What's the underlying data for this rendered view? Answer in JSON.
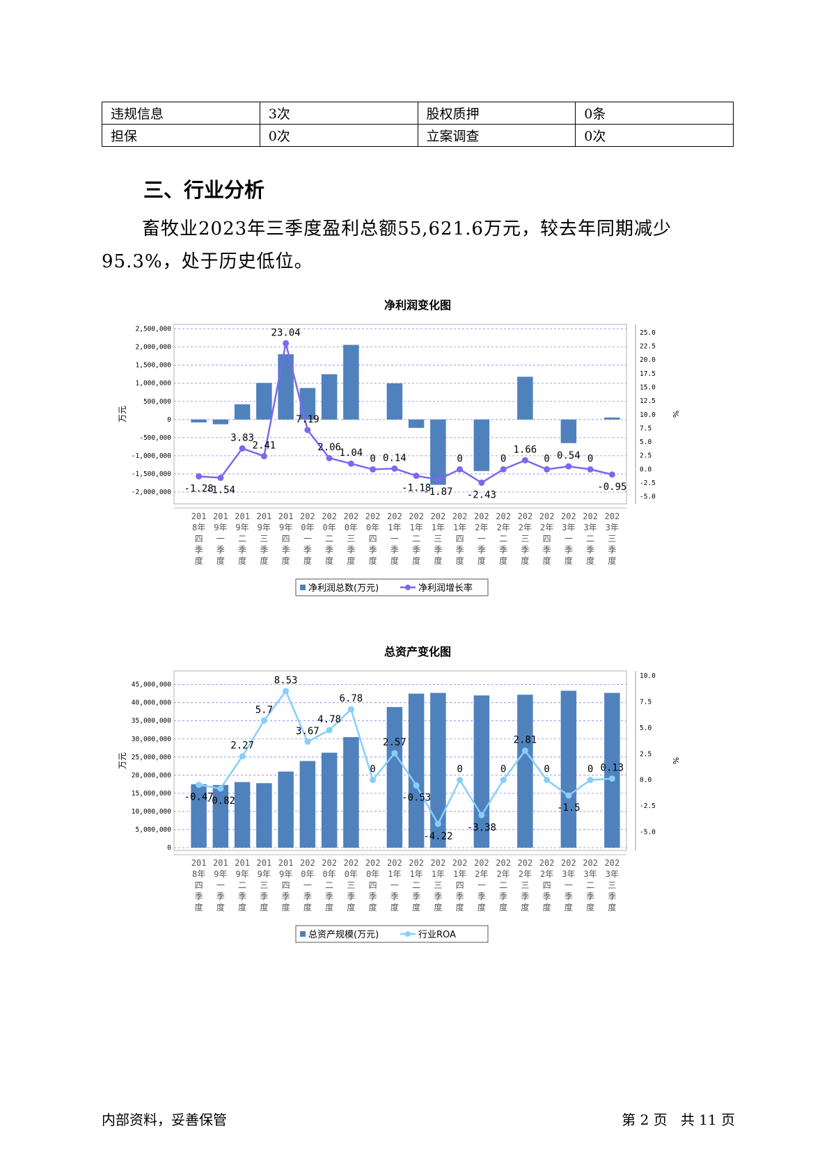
{
  "info_table": [
    [
      "违规信息",
      "3次",
      "股权质押",
      "0条"
    ],
    [
      "担保",
      "0次",
      "立案调查",
      "0次"
    ]
  ],
  "section_title": "三、行业分析",
  "paragraph": "畜牧业2023年三季度盈利总额55,621.6万元，较去年同期减少95.3%，处于历史低位。",
  "footer": {
    "left": "内部资料，妥善保管",
    "page": "第 2 页",
    "total": "共 11 页"
  },
  "colors": {
    "bar": "#4f81bd",
    "line1": "#7b68ee",
    "line2": "#87cefa",
    "grid": "#8080ff"
  },
  "chart_data": [
    {
      "type": "bar",
      "title": "净利润变化图",
      "categories": [
        [
          "201",
          "8年",
          "四",
          "季",
          "度"
        ],
        [
          "201",
          "9年",
          "一",
          "季",
          "度"
        ],
        [
          "201",
          "9年",
          "二",
          "季",
          "度"
        ],
        [
          "201",
          "9年",
          "三",
          "季",
          "度"
        ],
        [
          "201",
          "9年",
          "四",
          "季",
          "度"
        ],
        [
          "202",
          "0年",
          "一",
          "季",
          "度"
        ],
        [
          "202",
          "0年",
          "二",
          "季",
          "度"
        ],
        [
          "202",
          "0年",
          "三",
          "季",
          "度"
        ],
        [
          "202",
          "0年",
          "四",
          "季",
          "度"
        ],
        [
          "202",
          "1年",
          "一",
          "季",
          "度"
        ],
        [
          "202",
          "1年",
          "二",
          "季",
          "度"
        ],
        [
          "202",
          "1年",
          "三",
          "季",
          "度"
        ],
        [
          "202",
          "1年",
          "四",
          "季",
          "度"
        ],
        [
          "202",
          "2年",
          "一",
          "季",
          "度"
        ],
        [
          "202",
          "2年",
          "二",
          "季",
          "度"
        ],
        [
          "202",
          "2年",
          "三",
          "季",
          "度"
        ],
        [
          "202",
          "2年",
          "四",
          "季",
          "度"
        ],
        [
          "202",
          "3年",
          "一",
          "季",
          "度"
        ],
        [
          "202",
          "3年",
          "二",
          "季",
          "度"
        ],
        [
          "202",
          "3年",
          "三",
          "季",
          "度"
        ]
      ],
      "series": [
        {
          "name": "净利润总数(万元)",
          "kind": "bar",
          "axis": "left",
          "values": [
            -80000,
            -130000,
            420000,
            1010000,
            1800000,
            870000,
            1250000,
            2060000,
            0,
            1000000,
            -230000,
            -1800000,
            0,
            -1420000,
            0,
            1180000,
            0,
            -650000,
            0,
            55621.6
          ]
        },
        {
          "name": "净利润增长率",
          "kind": "line",
          "axis": "right",
          "values": [
            -1.28,
            -1.54,
            3.83,
            2.41,
            23.04,
            7.19,
            2.06,
            1.04,
            0,
            0.14,
            -1.18,
            -1.87,
            0,
            -2.43,
            0,
            1.66,
            0,
            0.54,
            0,
            -0.95
          ],
          "labels": [
            "-1.28",
            "-1.54",
            "3.83",
            "2.41",
            "23.04",
            "7.19",
            "2.06",
            "1.04",
            "0",
            "0.14",
            "-1.18",
            "-1.87",
            "0",
            "-2.43",
            "0",
            "1.66",
            "0",
            "0.54",
            "0",
            "-0.95"
          ]
        }
      ],
      "ylabel": "万元",
      "y2label": "%",
      "ylim": [
        -2250000,
        2550000
      ],
      "yticks": [
        2500000,
        2000000,
        1500000,
        1000000,
        500000,
        0,
        -500000,
        -1000000,
        -1500000,
        -2000000
      ],
      "ytick_labels": [
        "2,500,000",
        "2,000,000",
        "1,500,000",
        "1,000,000",
        "500,000",
        "0",
        "-500,000",
        "-1,000,000",
        "-1,500,000",
        "-2,000,000"
      ],
      "y2lim": [
        -5.8,
        26.0
      ],
      "y2ticks": [
        25,
        22.5,
        20,
        17.5,
        15,
        12.5,
        10,
        7.5,
        5,
        2.5,
        0,
        -2.5,
        -5
      ],
      "y2tick_labels": [
        "25.0",
        "22.5",
        "20.0",
        "17.5",
        "15.0",
        "12.5",
        "10.0",
        "7.5",
        "5.0",
        "2.5",
        "0.0",
        "-2.5",
        "-5.0"
      ],
      "grid": true,
      "legend": "bottom"
    },
    {
      "type": "bar",
      "title": "总资产变化图",
      "categories": [
        [
          "201",
          "8年",
          "四",
          "季",
          "度"
        ],
        [
          "201",
          "9年",
          "一",
          "季",
          "度"
        ],
        [
          "201",
          "9年",
          "二",
          "季",
          "度"
        ],
        [
          "201",
          "9年",
          "三",
          "季",
          "度"
        ],
        [
          "201",
          "9年",
          "四",
          "季",
          "度"
        ],
        [
          "202",
          "0年",
          "一",
          "季",
          "度"
        ],
        [
          "202",
          "0年",
          "二",
          "季",
          "度"
        ],
        [
          "202",
          "0年",
          "三",
          "季",
          "度"
        ],
        [
          "202",
          "0年",
          "四",
          "季",
          "度"
        ],
        [
          "202",
          "1年",
          "一",
          "季",
          "度"
        ],
        [
          "202",
          "1年",
          "二",
          "季",
          "度"
        ],
        [
          "202",
          "1年",
          "三",
          "季",
          "度"
        ],
        [
          "202",
          "1年",
          "四",
          "季",
          "度"
        ],
        [
          "202",
          "2年",
          "一",
          "季",
          "度"
        ],
        [
          "202",
          "2年",
          "二",
          "季",
          "度"
        ],
        [
          "202",
          "2年",
          "三",
          "季",
          "度"
        ],
        [
          "202",
          "2年",
          "四",
          "季",
          "度"
        ],
        [
          "202",
          "3年",
          "一",
          "季",
          "度"
        ],
        [
          "202",
          "3年",
          "二",
          "季",
          "度"
        ],
        [
          "202",
          "3年",
          "三",
          "季",
          "度"
        ]
      ],
      "series": [
        {
          "name": "总资产规模(万元)",
          "kind": "bar",
          "axis": "left",
          "values": [
            17500000,
            17300000,
            18100000,
            17800000,
            21000000,
            23900000,
            26200000,
            30500000,
            0,
            38800000,
            42500000,
            42700000,
            0,
            42000000,
            0,
            42200000,
            0,
            43300000,
            0,
            42700000
          ]
        },
        {
          "name": "行业ROA",
          "kind": "line",
          "axis": "right",
          "values": [
            -0.47,
            -0.82,
            2.27,
            5.7,
            8.53,
            3.67,
            4.78,
            6.78,
            0,
            2.57,
            -0.53,
            -4.22,
            0,
            -3.38,
            0,
            2.81,
            0,
            -1.5,
            0,
            0.13
          ],
          "labels": [
            "-0.47",
            "-0.82",
            "2.27",
            "5.7",
            "8.53",
            "3.67",
            "4.78",
            "6.78",
            "0",
            "2.57",
            "-0.53",
            "-4.22",
            "0",
            "-3.38",
            "0",
            "2.81",
            "0",
            "-1.5",
            "0",
            "0.13"
          ]
        }
      ],
      "ylabel": "万元",
      "y2label": "%",
      "ylim": [
        0,
        48000000
      ],
      "yticks": [
        45000000,
        40000000,
        35000000,
        30000000,
        25000000,
        20000000,
        15000000,
        10000000,
        5000000,
        0
      ],
      "ytick_labels": [
        "45,000,000",
        "40,000,000",
        "35,000,000",
        "30,000,000",
        "25,000,000",
        "20,000,000",
        "15,000,000",
        "10,000,000",
        "5,000,000",
        "0"
      ],
      "y2lim": [
        -6.5,
        10.2
      ],
      "y2ticks": [
        10,
        7.5,
        5,
        2.5,
        0,
        -2.5,
        -5
      ],
      "y2tick_labels": [
        "10.0",
        "7.5",
        "5.0",
        "2.5",
        "0.0",
        "-2.5",
        "-5.0"
      ],
      "grid": true,
      "legend": "bottom"
    }
  ]
}
